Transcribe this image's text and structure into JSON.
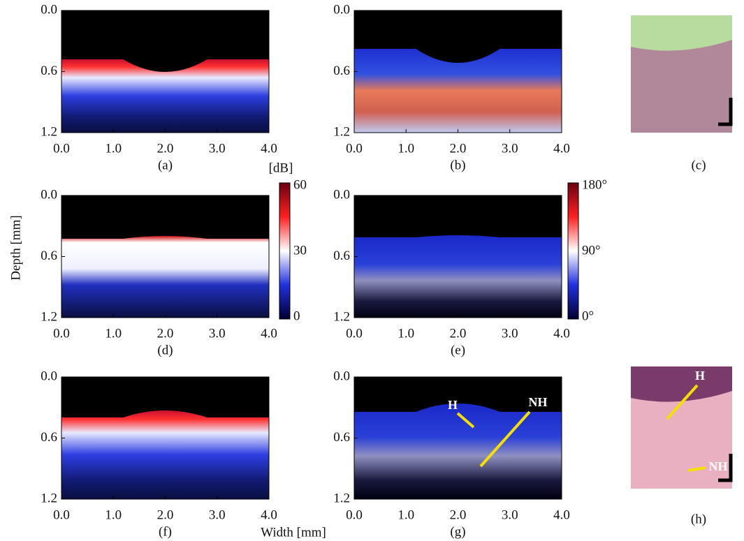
{
  "axes": {
    "y_title": "Depth [mm]",
    "x_title": "Width [mm]",
    "yticks": [
      "0.0",
      "0.6",
      "1.2"
    ],
    "xticks": [
      "0.0",
      "1.0",
      "2.0",
      "3.0",
      "4.0"
    ]
  },
  "panels": [
    {
      "label": "(a)"
    },
    {
      "label": "(b)"
    },
    {
      "label": "(c)"
    },
    {
      "label": "(d)"
    },
    {
      "label": "(e)"
    },
    {
      "label": "(f)"
    },
    {
      "label": "(g)"
    },
    {
      "label": "(h)"
    }
  ],
  "colorbars": [
    {
      "unit": "[dB]",
      "labels": [
        "60",
        "30",
        "0"
      ]
    },
    {
      "labels": [
        "180°",
        "90°",
        "0°"
      ]
    }
  ],
  "annotations": {
    "g": [
      "H",
      "NH"
    ],
    "h": [
      "H",
      "NH"
    ]
  }
}
